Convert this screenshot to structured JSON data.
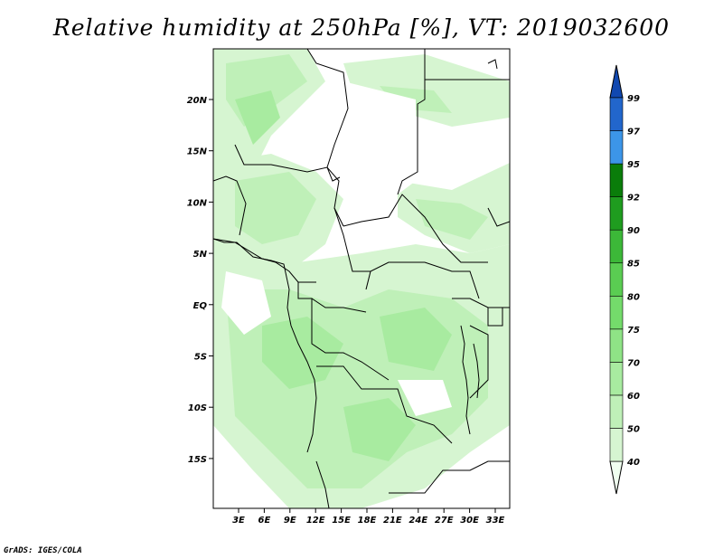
{
  "title": "Relative humidity at 250hPa [%], VT: 2019032600",
  "footer": "GrADS: IGES/COLA",
  "map": {
    "variable": "Relative humidity",
    "level": "250hPa",
    "units": "%",
    "valid_time": "2019032600",
    "lon_ticks": [
      "3E",
      "6E",
      "9E",
      "12E",
      "15E",
      "18E",
      "21E",
      "24E",
      "27E",
      "30E",
      "33E"
    ],
    "lat_ticks": [
      "20N",
      "15N",
      "10N",
      "5N",
      "EQ",
      "5S",
      "10S",
      "15S"
    ]
  },
  "colorbar": {
    "labels": [
      "40",
      "50",
      "60",
      "70",
      "75",
      "80",
      "85",
      "90",
      "92",
      "95",
      "97",
      "99"
    ],
    "colors": [
      "#f0fff0",
      "#d6f5d1",
      "#bff0b8",
      "#a8eba0",
      "#8fe386",
      "#74db6b",
      "#5acd52",
      "#3cb838",
      "#1f9c1f",
      "#0a7d0a",
      "#3c95e8",
      "#2266cc",
      "#1148b0"
    ]
  }
}
